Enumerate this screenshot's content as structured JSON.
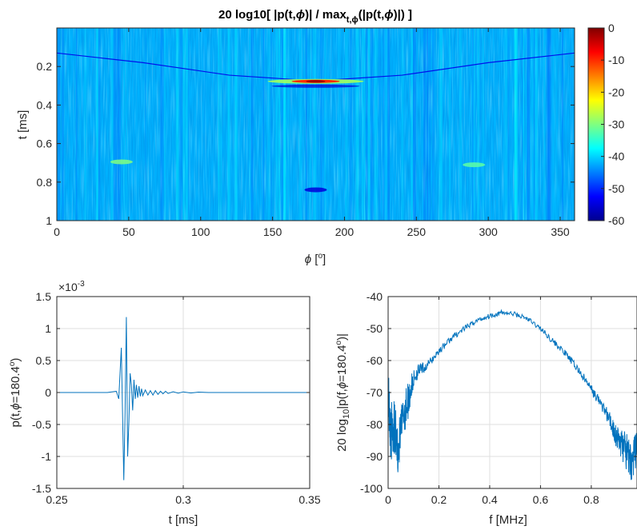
{
  "chart_data": [
    {
      "type": "heatmap",
      "title": "20 log10[ |p(t,ϕ)| / max_t,ϕ(|p(t,ϕ)|) ]",
      "title_parts": {
        "main": "20 log10[ |p(t,",
        "phi1": "ϕ",
        "mid": ")| / max",
        "sub": "t,ϕ",
        "rest": "(|p(t,",
        "phi2": "ϕ",
        "end": ")|) ]"
      },
      "xlabel": "ϕ [°]",
      "xlabel_parts": {
        "sym": "ϕ",
        "unit_open": " [",
        "deg": "o",
        "unit_close": "]"
      },
      "ylabel": "t [ms]",
      "xlim": [
        0,
        360
      ],
      "ylim": [
        0,
        1
      ],
      "y_reversed": true,
      "xticks": [
        0,
        50,
        100,
        150,
        200,
        250,
        300,
        350
      ],
      "xtick_labels": [
        "0",
        "50",
        "100",
        "150",
        "200",
        "250",
        "300",
        "350"
      ],
      "yticks": [
        0.2,
        0.4,
        0.6,
        0.8,
        1
      ],
      "ytick_labels": [
        "0.2",
        "0.4",
        "0.6",
        "0.8",
        "1"
      ],
      "colorbar": {
        "colormap": "jet",
        "clim": [
          -60,
          0
        ],
        "ticks": [
          0,
          -10,
          -20,
          -30,
          -40,
          -50,
          -60
        ],
        "tick_labels": [
          "0",
          "-10",
          "-20",
          "-30",
          "-40",
          "-50",
          "-60"
        ]
      },
      "background_level_db": -42,
      "features": [
        {
          "kind": "curve",
          "desc": "arrival arc",
          "points_phi_t": [
            [
              0,
              0.13
            ],
            [
              60,
              0.18
            ],
            [
              120,
              0.245
            ],
            [
              180,
              0.275
            ],
            [
              240,
              0.245
            ],
            [
              300,
              0.18
            ],
            [
              360,
              0.13
            ]
          ],
          "peak_db": -2,
          "peak_phi": 180,
          "peak_t": 0.277
        },
        {
          "kind": "blob",
          "phi": 180,
          "t": 0.84,
          "db": -55
        },
        {
          "kind": "blob",
          "phi": 45,
          "t": 0.695,
          "db": -30
        },
        {
          "kind": "blob",
          "phi": 290,
          "t": 0.71,
          "db": -32
        }
      ]
    },
    {
      "type": "line",
      "xlabel": "t [ms]",
      "ylabel": "p(t,ϕ=180.4°)",
      "ylabel_parts": {
        "pre": "p(t,",
        "sym": "ϕ",
        "mid": "=180.4",
        "deg": "o",
        "end": ")"
      },
      "xlim": [
        0.25,
        0.35
      ],
      "ylim": [
        -1.5,
        1.5
      ],
      "y_exponent": "×10",
      "y_exponent_power": "-3",
      "xticks": [
        0.25,
        0.3,
        0.35
      ],
      "xtick_labels": [
        "0.25",
        "0.3",
        "0.35"
      ],
      "yticks": [
        1.5,
        1,
        0.5,
        0,
        -0.5,
        -1,
        -1.5
      ],
      "ytick_labels": [
        "1.5",
        "1",
        "0.5",
        "0",
        "-0.5",
        "-1",
        "-1.5"
      ],
      "grid": true,
      "color": "#0072BD",
      "series": [
        {
          "x": [
            0.25,
            0.27,
            0.2735,
            0.2745,
            0.2755,
            0.2765,
            0.277,
            0.2775,
            0.278,
            0.2785,
            0.279,
            0.2795,
            0.28,
            0.2805,
            0.281,
            0.2815,
            0.282,
            0.2825,
            0.283,
            0.2835,
            0.284,
            0.285,
            0.286,
            0.287,
            0.288,
            0.289,
            0.29,
            0.291,
            0.292,
            0.293,
            0.294,
            0.296,
            0.298,
            0.3,
            0.303,
            0.306,
            0.31,
            0.32,
            0.33,
            0.35
          ],
          "y": [
            0,
            0,
            0.02,
            -0.1,
            0.7,
            -1.37,
            -0.3,
            1.18,
            -1.0,
            -0.45,
            0.3,
            0.12,
            -0.28,
            0.2,
            -0.1,
            0.12,
            -0.08,
            0.1,
            -0.06,
            0.06,
            -0.05,
            0.04,
            -0.04,
            0.03,
            -0.04,
            0.03,
            -0.03,
            0.02,
            -0.02,
            0.02,
            -0.015,
            0.012,
            -0.01,
            0.01,
            -0.008,
            0.006,
            0,
            0,
            0,
            0
          ]
        }
      ]
    },
    {
      "type": "line",
      "xlabel": "f [MHz]",
      "ylabel": "20 log10|p(f,ϕ=180.4°)|",
      "ylabel_parts": {
        "pre": "20 log",
        "sub": "10",
        "mid": "|p(f,",
        "sym": "ϕ",
        "val": "=180.4",
        "deg": "o",
        "end": ")|"
      },
      "xlim": [
        0,
        0.98
      ],
      "ylim": [
        -100,
        -40
      ],
      "xticks": [
        0,
        0.2,
        0.4,
        0.6,
        0.8
      ],
      "xtick_labels": [
        "0",
        "0.2",
        "0.4",
        "0.6",
        "0.8"
      ],
      "yticks": [
        -40,
        -50,
        -60,
        -70,
        -80,
        -90,
        -100
      ],
      "ytick_labels": [
        "-40",
        "-50",
        "-60",
        "-70",
        "-80",
        "-90",
        "-100"
      ],
      "grid": true,
      "color": "#0072BD",
      "series": [
        {
          "x": [
            0,
            0.01,
            0.02,
            0.04,
            0.06,
            0.08,
            0.1,
            0.12,
            0.15,
            0.2,
            0.25,
            0.3,
            0.35,
            0.4,
            0.45,
            0.5,
            0.55,
            0.6,
            0.65,
            0.7,
            0.75,
            0.8,
            0.85,
            0.88,
            0.9,
            0.92,
            0.94,
            0.96,
            0.98
          ],
          "y": [
            -70,
            -83,
            -80,
            -88,
            -77,
            -72,
            -66,
            -63,
            -62,
            -57,
            -53,
            -50,
            -47.5,
            -46,
            -45,
            -45.5,
            -47,
            -50,
            -54,
            -58,
            -63,
            -69,
            -75,
            -80,
            -84,
            -86,
            -89,
            -92,
            -87
          ],
          "noise_amp": [
            8,
            9,
            9,
            8,
            7,
            6,
            3,
            2,
            1.5,
            1.2,
            1,
            0.8,
            0.8,
            0.8,
            0.8,
            0.8,
            0.8,
            0.8,
            1,
            1,
            1.2,
            1.5,
            2,
            3,
            4,
            5,
            6,
            6,
            6
          ]
        }
      ]
    }
  ]
}
